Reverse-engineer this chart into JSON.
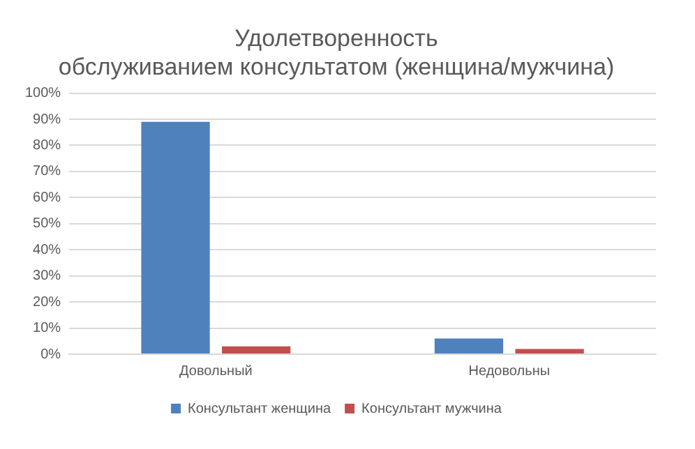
{
  "chart_data": {
    "type": "bar",
    "title": "Удолетворенность обслуживанием консультатом (женщина/мужчина)",
    "categories": [
      "Довольный",
      "Недовольны"
    ],
    "series": [
      {
        "name": "Консультант женщина",
        "color": "#4f81bd",
        "values": [
          89,
          6
        ]
      },
      {
        "name": "Консультант мужчина",
        "color": "#c0504d",
        "values": [
          3,
          2
        ]
      }
    ],
    "ylim": [
      0,
      100
    ],
    "yticks": [
      {
        "value": 0,
        "label": "0%"
      },
      {
        "value": 10,
        "label": "10%"
      },
      {
        "value": 20,
        "label": "20%"
      },
      {
        "value": 30,
        "label": "30%"
      },
      {
        "value": 40,
        "label": "40%"
      },
      {
        "value": 50,
        "label": "50%"
      },
      {
        "value": 60,
        "label": "60%"
      },
      {
        "value": 70,
        "label": "70%"
      },
      {
        "value": 80,
        "label": "80%"
      },
      {
        "value": 90,
        "label": "90%"
      },
      {
        "value": 100,
        "label": "100%"
      }
    ],
    "grid": "y",
    "legend": "bottom"
  }
}
